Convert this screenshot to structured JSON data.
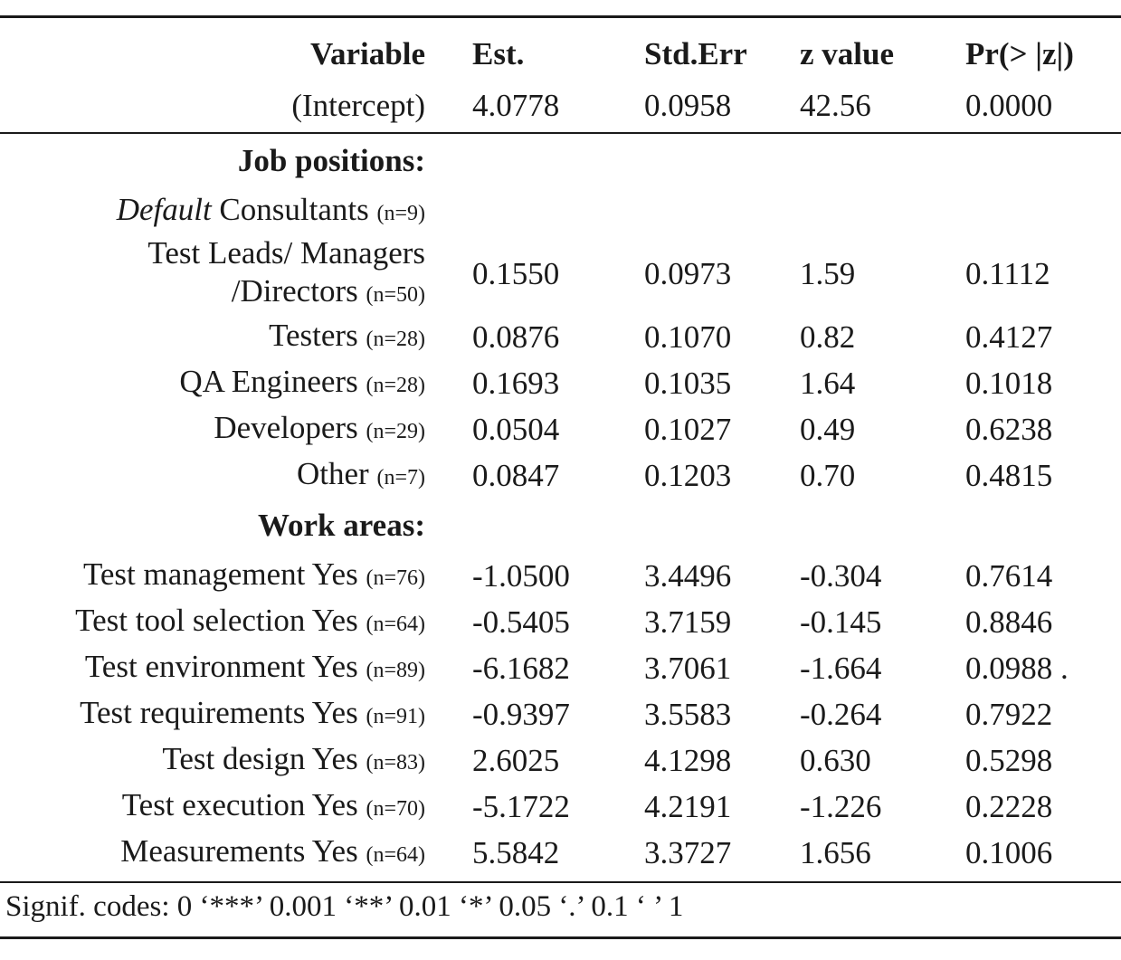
{
  "headers": [
    "Variable",
    "Est.",
    "Std.Err",
    "z value",
    "Pr(> |z|)"
  ],
  "intercept": {
    "label": "(Intercept)",
    "est": "4.0778",
    "se": "0.0958",
    "z": "42.56",
    "p": "0.0000"
  },
  "job_positions": {
    "title": "Job positions:",
    "default_prefix": "Default",
    "default_label": " Consultants ",
    "default_n": "(n=9)",
    "rows": [
      {
        "label_line1": "Test Leads/ Managers",
        "label_line2": "/Directors ",
        "n": "(n=50)",
        "est": "0.1550",
        "se": "0.0973",
        "z": "1.59",
        "p": "0.1112"
      },
      {
        "label": "Testers ",
        "n": "(n=28)",
        "est": "0.0876",
        "se": "0.1070",
        "z": "0.82",
        "p": "0.4127"
      },
      {
        "label": "QA Engineers ",
        "n": "(n=28)",
        "est": "0.1693",
        "se": "0.1035",
        "z": "1.64",
        "p": "0.1018"
      },
      {
        "label": "Developers ",
        "n": "(n=29)",
        "est": "0.0504",
        "se": "0.1027",
        "z": "0.49",
        "p": "0.6238"
      },
      {
        "label": "Other ",
        "n": "(n=7)",
        "est": "0.0847",
        "se": "0.1203",
        "z": "0.70",
        "p": "0.4815"
      }
    ]
  },
  "work_areas": {
    "title": "Work areas:",
    "rows": [
      {
        "label": "Test management Yes  ",
        "n": "(n=76)",
        "est": "-1.0500",
        "se": "3.4496",
        "z": "-0.304",
        "p": "0.7614"
      },
      {
        "label": "Test tool selection Yes ",
        "n": "(n=64)",
        "est": "-0.5405",
        "se": "3.7159",
        "z": "-0.145",
        "p": "0.8846"
      },
      {
        "label": "Test environment Yes ",
        "n": "(n=89)",
        "est": "-6.1682",
        "se": "3.7061",
        "z": "-1.664",
        "p": "0.0988 ."
      },
      {
        "label": "Test requirements Yes ",
        "n": "(n=91)",
        "est": "-0.9397",
        "se": "3.5583",
        "z": "-0.264",
        "p": "0.7922"
      },
      {
        "label": "Test design Yes ",
        "n": "(n=83)",
        "est": "2.6025",
        "se": "4.1298",
        "z": "0.630",
        "p": "0.5298"
      },
      {
        "label": "Test execution Yes ",
        "n": "(n=70)",
        "est": "-5.1722",
        "se": "4.2191",
        "z": "-1.226",
        "p": "0.2228"
      },
      {
        "label": "Measurements Yes ",
        "n": "(n=64)",
        "est": "5.5842",
        "se": "3.3727",
        "z": "1.656",
        "p": "0.1006"
      }
    ]
  },
  "signif_codes": "Signif. codes: 0 ‘***’ 0.001 ‘**’ 0.01 ‘*’ 0.05 ‘.’ 0.1 ‘ ’ 1"
}
